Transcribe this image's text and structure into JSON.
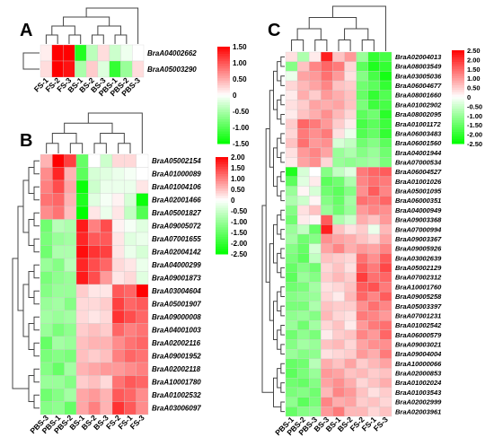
{
  "chart_data": [
    {
      "type": "heatmap",
      "panel": "A",
      "columns": [
        "FS-1",
        "FS-2",
        "FS-3",
        "BS-1",
        "BS-2",
        "BS-3",
        "PBS-1",
        "PBS-2",
        "PBS-3"
      ],
      "rows": [
        "BraA04002662",
        "BraA05003290"
      ],
      "values": [
        [
          0.1,
          1.5,
          1.5,
          -1.3,
          -0.4,
          0.2,
          -0.3,
          -0.1,
          0.0
        ],
        [
          0.2,
          1.5,
          1.4,
          -0.5,
          0.3,
          -0.2,
          -1.2,
          -0.6,
          0.2
        ]
      ],
      "colorbar": {
        "min": -1.5,
        "max": 1.5,
        "ticks": [
          "1.50",
          "1.00",
          "0.50",
          "0",
          "-0.50",
          "-1.00",
          "-1.50"
        ]
      }
    },
    {
      "type": "heatmap",
      "panel": "B",
      "columns": [
        "PBS-3",
        "PBS-1",
        "PBS-2",
        "BS-1",
        "BS-2",
        "BS-3",
        "FS-2",
        "FS-1",
        "FS-3"
      ],
      "rows": [
        "BraA05002154",
        "BraA01000089",
        "BraA01004106",
        "BraA02001466",
        "BraA05001827",
        "BraA09005072",
        "BraA07001655",
        "BraA02004142",
        "BraA04000299",
        "BraA09001873",
        "BraA03004604",
        "BraA05001907",
        "BraA09000008",
        "BraA04001003",
        "BraA02002116",
        "BraA09001952",
        "BraA02002118",
        "BraA10001780",
        "BraA01002532",
        "BraA03006097"
      ],
      "values": [
        [
          0.6,
          2.0,
          1.5,
          -1.5,
          0.0,
          -0.5,
          0.3,
          0.3,
          0.0
        ],
        [
          0.9,
          1.7,
          0.6,
          -1.6,
          -0.4,
          -0.3,
          -0.2,
          -0.1,
          0.0
        ],
        [
          1.0,
          1.4,
          0.7,
          -2.4,
          -0.5,
          -0.2,
          -0.2,
          -0.2,
          0.2
        ],
        [
          1.1,
          1.2,
          0.6,
          -2.2,
          -0.3,
          -0.1,
          0.1,
          -0.4,
          -2.4
        ],
        [
          0.9,
          1.1,
          0.5,
          -2.5,
          0.2,
          -0.2,
          0.2,
          -0.6,
          -1.7
        ],
        [
          -1.4,
          -0.7,
          -0.8,
          1.8,
          1.0,
          1.4,
          0.1,
          -0.1,
          -0.3
        ],
        [
          -1.3,
          -1.0,
          -0.9,
          1.7,
          1.3,
          1.3,
          0.2,
          -0.3,
          -0.2
        ],
        [
          -1.4,
          -0.8,
          -0.8,
          1.9,
          1.6,
          1.5,
          0.2,
          -0.2,
          -0.4
        ],
        [
          -1.0,
          -1.2,
          -0.7,
          1.7,
          1.4,
          1.2,
          0.3,
          0.2,
          -0.2
        ],
        [
          -1.3,
          -1.1,
          -1.0,
          1.8,
          1.4,
          0.8,
          0.2,
          0.3,
          -0.3
        ],
        [
          -1.2,
          -1.0,
          -1.0,
          0.4,
          0.2,
          0.2,
          1.3,
          1.2,
          2.0
        ],
        [
          -1.0,
          -0.9,
          -1.2,
          0.3,
          0.3,
          0.4,
          1.5,
          1.2,
          1.3
        ],
        [
          -0.9,
          -1.0,
          -0.9,
          0.3,
          0.2,
          0.3,
          1.6,
          1.4,
          1.2
        ],
        [
          -1.0,
          -1.3,
          -1.1,
          0.4,
          0.5,
          0.4,
          1.2,
          1.0,
          1.1
        ],
        [
          -1.5,
          -0.9,
          -1.0,
          0.5,
          0.6,
          0.6,
          0.9,
          1.1,
          1.2
        ],
        [
          -1.3,
          -1.2,
          -1.3,
          0.5,
          0.4,
          0.5,
          1.0,
          1.2,
          1.1
        ],
        [
          -1.2,
          -1.5,
          -0.9,
          0.6,
          0.7,
          0.8,
          0.8,
          0.9,
          1.0
        ],
        [
          -1.0,
          -1.0,
          -1.2,
          0.4,
          0.5,
          0.3,
          1.1,
          1.3,
          1.2
        ],
        [
          -1.4,
          -1.2,
          -0.9,
          0.7,
          0.8,
          0.6,
          1.3,
          1.2,
          0.9
        ],
        [
          -1.2,
          -1.1,
          -1.5,
          0.7,
          1.0,
          0.6,
          1.6,
          1.3,
          0.9
        ]
      ],
      "colorbar": {
        "min": -2.5,
        "max": 2.0,
        "ticks": [
          "2.00",
          "1.50",
          "1.00",
          "0.50",
          "0",
          "-0.50",
          "-1.00",
          "-1.50",
          "-2.00",
          "-2.50"
        ]
      }
    },
    {
      "type": "heatmap",
      "panel": "C",
      "columns": [
        "PBS-1",
        "PBS-2",
        "PBS-3",
        "BS-3",
        "BS-1",
        "BS-2",
        "FS-2",
        "FS-1",
        "FS-3"
      ],
      "rows": [
        "BraA02004013",
        "BraA08003549",
        "BraA03005036",
        "BraA06004677",
        "BraA08001660",
        "BraA01002902",
        "BraA08002095",
        "BraA01001172",
        "BraA06003483",
        "BraA06001560",
        "BraA04001944",
        "BraA07000534",
        "BraA06004527",
        "BraA01001026",
        "BraA05001095",
        "BraA06000351",
        "BraA04000949",
        "BraA09003368",
        "BraA07000994",
        "BraA09003367",
        "BraA09005926",
        "BraA03002639",
        "BraA05002129",
        "BraA07002312",
        "BraA10001760",
        "BraA09005258",
        "BraA05003397",
        "BraA07001231",
        "BraA01002542",
        "BraA06000579",
        "BraA09003021",
        "BraA09004004",
        "BraA10000066",
        "BraA02000853",
        "BraA01002024",
        "BraA01003543",
        "BraA02002999",
        "BraA02003961"
      ],
      "values": [
        [
          0.3,
          -0.8,
          0.2,
          2.2,
          0.6,
          1.0,
          -1.0,
          -2.0,
          -1.8
        ],
        [
          -1.2,
          0.6,
          1.2,
          1.5,
          1.3,
          0.4,
          -1.6,
          -2.2,
          -2.0
        ],
        [
          -0.2,
          0.9,
          1.0,
          1.4,
          1.0,
          0.3,
          -1.2,
          -1.8,
          -2.3
        ],
        [
          0.4,
          0.7,
          0.9,
          1.2,
          0.6,
          0.5,
          -1.4,
          -1.6,
          -2.0
        ],
        [
          0.2,
          0.8,
          0.5,
          1.0,
          0.8,
          0.6,
          -1.5,
          -2.0,
          -1.7
        ],
        [
          0.3,
          0.5,
          0.9,
          0.8,
          0.9,
          0.6,
          -1.3,
          -1.9,
          -1.8
        ],
        [
          0.2,
          0.6,
          0.8,
          1.1,
          0.7,
          0.4,
          -1.6,
          -1.4,
          -2.1
        ],
        [
          0.5,
          1.5,
          1.3,
          1.0,
          0.5,
          0.2,
          -1.8,
          -1.6,
          -1.9
        ],
        [
          0.4,
          1.3,
          1.1,
          1.3,
          0.3,
          -0.2,
          -1.7,
          -1.5,
          -2.0
        ],
        [
          0.6,
          1.4,
          1.0,
          1.1,
          -0.4,
          -0.6,
          -1.4,
          -1.2,
          -1.6
        ],
        [
          0.3,
          1.0,
          1.2,
          0.9,
          -1.0,
          -0.8,
          -1.2,
          -1.0,
          -1.4
        ],
        [
          0.2,
          0.9,
          1.1,
          0.4,
          -1.0,
          -1.1,
          -1.0,
          -0.9,
          -1.3
        ],
        [
          -2.2,
          -0.4,
          0.0,
          -1.2,
          -0.6,
          -0.3,
          1.3,
          1.5,
          1.6
        ],
        [
          -1.6,
          -0.3,
          0.2,
          -1.6,
          -1.4,
          -0.8,
          1.2,
          1.4,
          1.3
        ],
        [
          -1.0,
          0.1,
          -0.4,
          -1.4,
          -1.6,
          -1.2,
          1.1,
          1.6,
          1.2
        ],
        [
          -0.8,
          -0.5,
          0.1,
          -1.2,
          -1.5,
          -0.9,
          1.4,
          1.3,
          1.5
        ],
        [
          -1.2,
          0.3,
          0.6,
          -1.0,
          -1.4,
          -1.0,
          1.0,
          1.2,
          1.1
        ],
        [
          -1.4,
          0.2,
          0.1,
          1.6,
          -0.8,
          -0.5,
          0.8,
          0.6,
          1.0
        ],
        [
          -1.0,
          -0.6,
          -1.5,
          2.2,
          0.6,
          0.3,
          0.5,
          -0.2,
          0.7
        ],
        [
          -0.9,
          -1.4,
          -1.2,
          1.1,
          0.9,
          0.8,
          0.6,
          0.4,
          0.9
        ],
        [
          -1.2,
          -1.5,
          -0.4,
          0.9,
          1.2,
          0.8,
          1.0,
          0.9,
          1.2
        ],
        [
          -1.3,
          -1.6,
          -0.6,
          0.6,
          0.5,
          0.4,
          1.4,
          1.1,
          1.6
        ],
        [
          -1.5,
          -1.2,
          -1.4,
          0.4,
          0.6,
          0.3,
          1.6,
          1.3,
          1.8
        ],
        [
          -1.6,
          -1.0,
          -1.2,
          0.5,
          0.7,
          0.5,
          1.9,
          1.4,
          1.5
        ],
        [
          -1.4,
          -1.3,
          -0.9,
          0.3,
          0.4,
          0.6,
          1.6,
          1.7,
          1.3
        ],
        [
          -1.2,
          -1.1,
          -1.0,
          0.4,
          0.2,
          0.7,
          1.5,
          1.2,
          1.6
        ],
        [
          -1.3,
          -1.3,
          -0.8,
          0.6,
          0.5,
          0.5,
          1.1,
          1.4,
          1.2
        ],
        [
          -1.1,
          -1.0,
          -1.2,
          0.7,
          0.4,
          0.3,
          1.3,
          1.2,
          1.0
        ],
        [
          -1.0,
          -1.4,
          -0.9,
          0.4,
          0.6,
          0.2,
          1.0,
          1.3,
          1.4
        ],
        [
          -1.4,
          -1.1,
          -1.3,
          0.2,
          0.5,
          0.6,
          1.2,
          1.0,
          1.5
        ],
        [
          -1.2,
          -0.9,
          -1.0,
          0.6,
          0.7,
          0.4,
          0.9,
          1.1,
          1.1
        ],
        [
          -1.0,
          -1.2,
          -1.1,
          0.3,
          0.4,
          0.5,
          1.0,
          0.8,
          1.3
        ],
        [
          -1.5,
          -1.4,
          -0.7,
          0.8,
          0.6,
          0.9,
          0.5,
          0.7,
          0.9
        ],
        [
          -1.6,
          -1.3,
          -1.0,
          1.0,
          0.9,
          0.6,
          0.7,
          0.5,
          0.6
        ],
        [
          -1.4,
          -1.5,
          -1.2,
          0.9,
          1.1,
          0.8,
          0.4,
          0.6,
          0.8
        ],
        [
          -1.3,
          -1.2,
          -1.4,
          0.7,
          1.2,
          1.0,
          0.6,
          0.3,
          0.5
        ],
        [
          -1.1,
          -1.6,
          -1.3,
          1.2,
          0.8,
          0.9,
          0.5,
          0.6,
          0.4
        ],
        [
          -1.5,
          -1.2,
          -1.1,
          1.0,
          1.3,
          0.7,
          0.7,
          0.4,
          0.6
        ]
      ],
      "colorbar": {
        "min": -2.5,
        "max": 2.5,
        "ticks": [
          "2.50",
          "2.00",
          "1.50",
          "1.00",
          "0.50",
          "0",
          "-0.50",
          "-1.00",
          "-1.50",
          "-2.00",
          "-2.50"
        ]
      }
    }
  ],
  "colors": {
    "high": "#ff0000",
    "mid": "#ffffff",
    "low": "#00ff00",
    "grid": "#cccccc",
    "dendro": "#444444"
  }
}
